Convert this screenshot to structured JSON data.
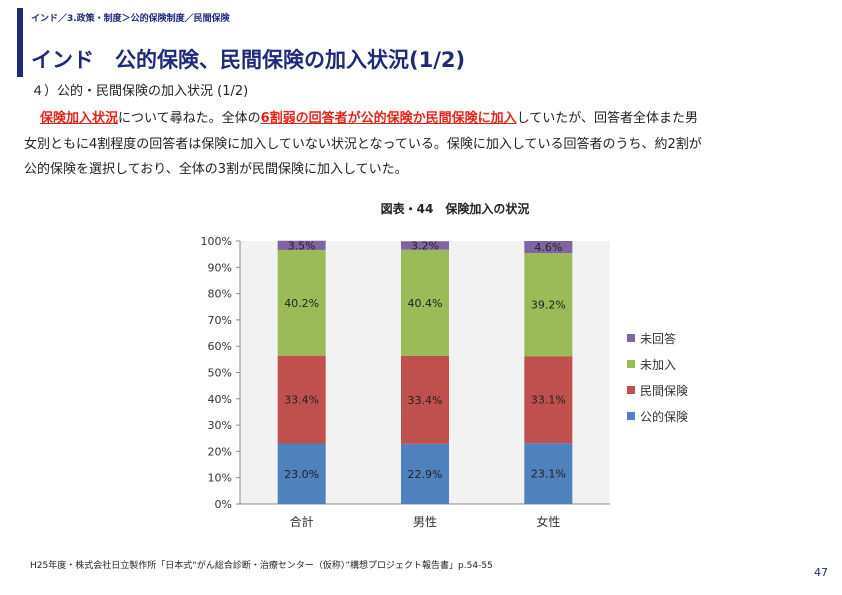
{
  "header": {
    "breadcrumb": "インド／3.政策・制度＞公的保険制度／民間保険",
    "title": "インド　公的保険、民間保険の加入状況(1/2)",
    "accent_color": "#1f2a7a"
  },
  "section": {
    "heading": "４）公的・民間保険の加入状況 (1/2)"
  },
  "body": {
    "p1_hl1": "保険加入状況",
    "p1_t1": "について尋ねた。全体の",
    "p1_hl2": "6割弱の回答者が公的保険か民間保険に加入",
    "p1_t2": "していたが、回答者全体また男",
    "p2": "女別ともに4割程度の回答者は保険に加入していない状況となっている。保険に加入している回答者のうち、約2割が",
    "p3": "公的保険を選択しており、全体の3割が民間保険に加入していた。",
    "highlight_color": "#e0261b"
  },
  "chart_data": {
    "type": "bar",
    "stacked": true,
    "title": "図表・44　保険加入の状況",
    "categories": [
      "合計",
      "男性",
      "女性"
    ],
    "series": [
      {
        "name": "公的保険",
        "color": "#4f81bd",
        "values": [
          23.0,
          22.9,
          23.1
        ]
      },
      {
        "name": "民間保険",
        "color": "#c0504d",
        "values": [
          33.4,
          33.4,
          33.1
        ]
      },
      {
        "name": "未加入",
        "color": "#9bbb59",
        "values": [
          40.2,
          40.4,
          39.2
        ]
      },
      {
        "name": "未回答",
        "color": "#8064a2",
        "values": [
          3.5,
          3.2,
          4.6
        ]
      }
    ],
    "value_labels": [
      [
        "23.0%",
        "22.9%",
        "23.1%"
      ],
      [
        "33.4%",
        "33.4%",
        "33.1%"
      ],
      [
        "40.2%",
        "40.4%",
        "39.2%"
      ],
      [
        "3.5%",
        "3.2%",
        "4.6%"
      ]
    ],
    "y_ticks": [
      "0%",
      "10%",
      "20%",
      "30%",
      "40%",
      "50%",
      "60%",
      "70%",
      "80%",
      "90%",
      "100%"
    ],
    "ylim": [
      0,
      100
    ],
    "legend_position": "right",
    "grid": false
  },
  "footer": {
    "source": "H25年度・株式会社日立製作所「日本式“がん総合診断・治療センター（仮称）”構想プロジェクト報告書」p.54-55",
    "page_number": "47"
  }
}
